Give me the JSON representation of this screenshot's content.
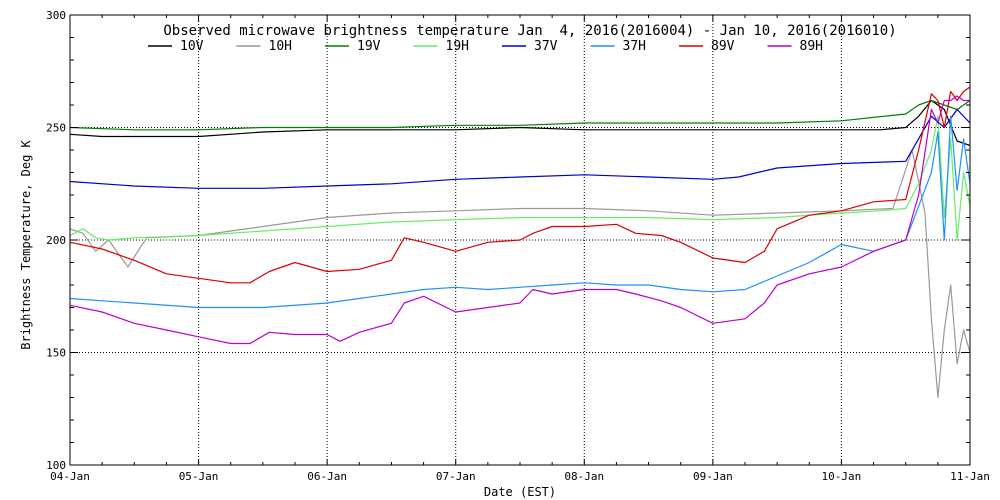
{
  "chart_data": {
    "type": "line",
    "title": "Observed microwave brightness temperature Jan  4, 2016(2016004) - Jan 10, 2016(2016010)",
    "xlabel": "Date (EST)",
    "ylabel": "Brightness Temperature, Deg K",
    "xlim": [
      0,
      7
    ],
    "ylim": [
      100,
      300
    ],
    "x_ticks": [
      {
        "value": 0,
        "label": "04-Jan"
      },
      {
        "value": 1,
        "label": "05-Jan"
      },
      {
        "value": 2,
        "label": "06-Jan"
      },
      {
        "value": 3,
        "label": "07-Jan"
      },
      {
        "value": 4,
        "label": "08-Jan"
      },
      {
        "value": 5,
        "label": "09-Jan"
      },
      {
        "value": 6,
        "label": "10-Jan"
      },
      {
        "value": 7,
        "label": "11-Jan"
      }
    ],
    "y_ticks": [
      {
        "value": 100,
        "label": "100"
      },
      {
        "value": 150,
        "label": "150"
      },
      {
        "value": 200,
        "label": "200"
      },
      {
        "value": 250,
        "label": "250"
      },
      {
        "value": 300,
        "label": "300"
      }
    ],
    "grid": true,
    "legend_position": "top",
    "x_unit": "days since 04-Jan",
    "series": [
      {
        "name": "10V",
        "color": "#000000",
        "x": [
          0,
          0.25,
          0.5,
          1.0,
          1.5,
          2.0,
          2.5,
          3.0,
          3.5,
          4.0,
          4.5,
          5.0,
          5.5,
          6.0,
          6.3,
          6.5,
          6.6,
          6.7,
          6.8,
          6.9,
          7.0
        ],
        "y": [
          247,
          246,
          246,
          246,
          248,
          249,
          249,
          249,
          250,
          249,
          249,
          249,
          249,
          249,
          249,
          250,
          255,
          262,
          258,
          244,
          242
        ]
      },
      {
        "name": "10H",
        "color": "#999999",
        "x": [
          0,
          0.1,
          0.2,
          0.3,
          0.45,
          0.55,
          0.6,
          1.0,
          1.5,
          2.0,
          2.5,
          3.0,
          3.5,
          4.0,
          4.5,
          5.0,
          5.5,
          6.0,
          6.4,
          6.55,
          6.65,
          6.7,
          6.75,
          6.8,
          6.85,
          6.9,
          6.95,
          7.0
        ],
        "y": [
          205,
          203,
          195,
          200,
          188,
          197,
          201,
          202,
          206,
          210,
          212,
          213,
          214,
          214,
          213,
          211,
          212,
          213,
          214,
          240,
          212,
          165,
          130,
          160,
          180,
          145,
          160,
          150
        ]
      },
      {
        "name": "19V",
        "color": "#008000",
        "x": [
          0,
          0.5,
          1.0,
          1.5,
          2.0,
          2.5,
          3.0,
          3.5,
          4.0,
          4.5,
          5.0,
          5.5,
          6.0,
          6.5,
          6.6,
          6.7,
          6.8,
          6.9,
          7.0
        ],
        "y": [
          250,
          249,
          249,
          250,
          250,
          250,
          251,
          251,
          252,
          252,
          252,
          252,
          253,
          256,
          260,
          262,
          260,
          258,
          262
        ]
      },
      {
        "name": "19H",
        "color": "#66ee66",
        "x": [
          0,
          0.1,
          0.2,
          0.3,
          0.5,
          1.0,
          1.5,
          2.0,
          2.5,
          3.0,
          3.5,
          4.0,
          4.5,
          5.0,
          5.5,
          6.0,
          6.3,
          6.5,
          6.6,
          6.7,
          6.75,
          6.8,
          6.85,
          6.9,
          6.95,
          7.0
        ],
        "y": [
          202,
          205,
          201,
          200,
          201,
          202,
          204,
          206,
          208,
          209,
          210,
          210,
          210,
          209,
          210,
          212,
          213,
          214,
          225,
          240,
          255,
          210,
          245,
          200,
          230,
          215
        ]
      },
      {
        "name": "37V",
        "color": "#0000cc",
        "x": [
          0,
          0.5,
          1.0,
          1.5,
          2.0,
          2.5,
          3.0,
          3.5,
          4.0,
          4.5,
          5.0,
          5.2,
          5.5,
          6.0,
          6.5,
          6.6,
          6.7,
          6.8,
          6.9,
          7.0
        ],
        "y": [
          226,
          224,
          223,
          223,
          224,
          225,
          227,
          228,
          229,
          228,
          227,
          228,
          232,
          234,
          235,
          245,
          255,
          250,
          258,
          252
        ]
      },
      {
        "name": "37H",
        "color": "#1e90ff",
        "x": [
          0,
          0.25,
          0.5,
          1.0,
          1.5,
          2.0,
          2.25,
          2.5,
          2.75,
          3.0,
          3.25,
          3.5,
          3.75,
          4.0,
          4.25,
          4.5,
          4.75,
          5.0,
          5.25,
          5.5,
          5.75,
          6.0,
          6.25,
          6.5,
          6.6,
          6.7,
          6.75,
          6.8,
          6.85,
          6.9,
          6.95,
          7.0
        ],
        "y": [
          174,
          173,
          172,
          170,
          170,
          172,
          174,
          176,
          178,
          179,
          178,
          179,
          180,
          181,
          180,
          180,
          178,
          177,
          178,
          184,
          190,
          198,
          195,
          200,
          215,
          230,
          248,
          200,
          255,
          222,
          245,
          225
        ]
      },
      {
        "name": "89V",
        "color": "#dd0000",
        "x": [
          0,
          0.25,
          0.5,
          0.75,
          1.0,
          1.25,
          1.4,
          1.55,
          1.75,
          2.0,
          2.25,
          2.5,
          2.6,
          2.75,
          3.0,
          3.25,
          3.5,
          3.6,
          3.75,
          4.0,
          4.25,
          4.4,
          4.6,
          4.75,
          5.0,
          5.25,
          5.4,
          5.5,
          5.75,
          6.0,
          6.25,
          6.5,
          6.6,
          6.7,
          6.75,
          6.8,
          6.85,
          6.9,
          6.95,
          7.0
        ],
        "y": [
          199,
          196,
          191,
          185,
          183,
          181,
          181,
          186,
          190,
          186,
          187,
          191,
          201,
          199,
          195,
          199,
          200,
          203,
          206,
          206,
          207,
          203,
          202,
          199,
          192,
          190,
          195,
          205,
          211,
          213,
          217,
          218,
          240,
          265,
          262,
          250,
          266,
          262,
          266,
          268
        ]
      },
      {
        "name": "89H",
        "color": "#bb00cc",
        "x": [
          0,
          0.25,
          0.5,
          0.75,
          1.0,
          1.25,
          1.4,
          1.55,
          1.75,
          2.0,
          2.1,
          2.25,
          2.5,
          2.6,
          2.75,
          3.0,
          3.25,
          3.5,
          3.6,
          3.75,
          4.0,
          4.25,
          4.4,
          4.6,
          4.75,
          5.0,
          5.25,
          5.4,
          5.5,
          5.75,
          6.0,
          6.25,
          6.5,
          6.6,
          6.7,
          6.75,
          6.8,
          6.85,
          6.9,
          6.95,
          7.0
        ],
        "y": [
          171,
          168,
          163,
          160,
          157,
          154,
          154,
          159,
          158,
          158,
          155,
          159,
          163,
          172,
          175,
          168,
          170,
          172,
          178,
          176,
          178,
          178,
          176,
          173,
          170,
          163,
          165,
          172,
          180,
          185,
          188,
          195,
          200,
          220,
          258,
          252,
          262,
          262,
          264,
          262,
          262
        ]
      }
    ]
  }
}
